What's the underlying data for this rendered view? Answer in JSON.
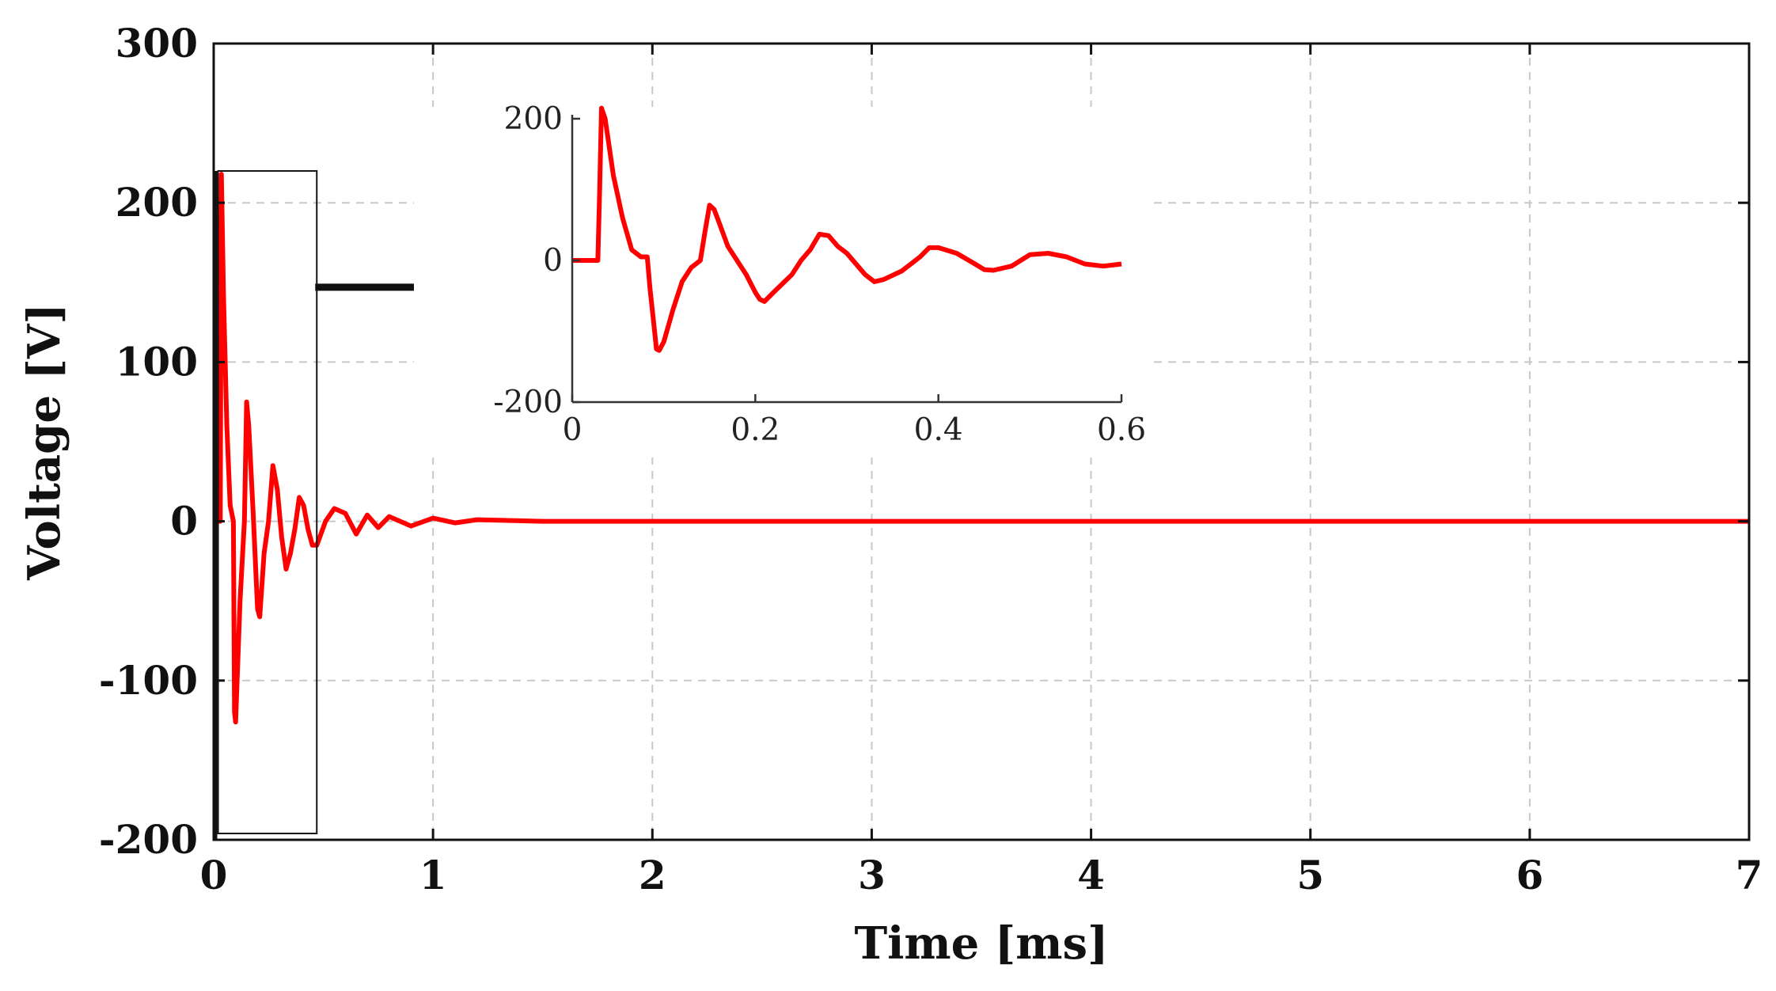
{
  "chart_data": [
    {
      "type": "line",
      "title": "",
      "xlabel": "Time [ms]",
      "ylabel": "Voltage [V]",
      "xlim": [
        0,
        7
      ],
      "ylim": [
        -200,
        300
      ],
      "x_ticks": [
        "0",
        "1",
        "2",
        "3",
        "4",
        "5",
        "6",
        "7"
      ],
      "y_ticks": [
        "-200",
        "-100",
        "0",
        "100",
        "200",
        "300"
      ],
      "grid": true,
      "series": [
        {
          "color": "#ff0000",
          "x": [
            0,
            0.03,
            0.035,
            0.045,
            0.06,
            0.075,
            0.09,
            0.095,
            0.1,
            0.12,
            0.14,
            0.15,
            0.16,
            0.18,
            0.2,
            0.21,
            0.23,
            0.25,
            0.27,
            0.29,
            0.31,
            0.33,
            0.35,
            0.37,
            0.39,
            0.41,
            0.43,
            0.45,
            0.47,
            0.51,
            0.55,
            0.6,
            0.65,
            0.7,
            0.75,
            0.8,
            0.9,
            1.0,
            1.1,
            1.2,
            1.5,
            2.0,
            3.0,
            4.0,
            5.0,
            6.0,
            7.0
          ],
          "y": [
            0,
            0,
            218,
            140,
            60,
            10,
            0,
            -120,
            -126,
            -50,
            0,
            75,
            60,
            5,
            -55,
            -60,
            -20,
            0,
            35,
            20,
            -10,
            -30,
            -20,
            -5,
            15,
            10,
            -5,
            -15,
            -15,
            0,
            8,
            5,
            -8,
            4,
            -4,
            3,
            -3,
            2,
            -1,
            1,
            0,
            0,
            0,
            0,
            0,
            0,
            0
          ]
        }
      ],
      "annotations": [
        "zoom-box",
        "arrow"
      ]
    },
    {
      "type": "line",
      "title": "",
      "xlabel": "",
      "ylabel": "",
      "xlim": [
        0,
        0.6
      ],
      "ylim": [
        -200,
        200
      ],
      "x_ticks": [
        "0",
        "0.2",
        "0.4",
        "0.6"
      ],
      "y_ticks": [
        "-200",
        "0",
        "200"
      ],
      "grid": false,
      "series": [
        {
          "color": "#ff0000",
          "x": [
            0,
            0.028,
            0.03,
            0.032,
            0.036,
            0.045,
            0.055,
            0.065,
            0.075,
            0.082,
            0.085,
            0.09,
            0.092,
            0.095,
            0.1,
            0.11,
            0.12,
            0.13,
            0.135,
            0.14,
            0.145,
            0.15,
            0.155,
            0.16,
            0.17,
            0.18,
            0.19,
            0.2,
            0.205,
            0.21,
            0.22,
            0.24,
            0.25,
            0.26,
            0.27,
            0.28,
            0.29,
            0.3,
            0.31,
            0.32,
            0.33,
            0.34,
            0.36,
            0.38,
            0.39,
            0.4,
            0.42,
            0.44,
            0.45,
            0.46,
            0.48,
            0.5,
            0.52,
            0.54,
            0.56,
            0.58,
            0.6
          ],
          "y": [
            0,
            0,
            100,
            215,
            200,
            120,
            60,
            15,
            5,
            5,
            -40,
            -100,
            -125,
            -127,
            -115,
            -70,
            -30,
            -10,
            -5,
            0,
            40,
            78,
            72,
            55,
            20,
            0,
            -20,
            -45,
            -55,
            -58,
            -45,
            -20,
            0,
            15,
            37,
            35,
            20,
            10,
            -5,
            -20,
            -30,
            -27,
            -15,
            5,
            18,
            18,
            10,
            -5,
            -13,
            -14,
            -8,
            8,
            10,
            5,
            -5,
            -8,
            -5
          ]
        }
      ]
    }
  ]
}
